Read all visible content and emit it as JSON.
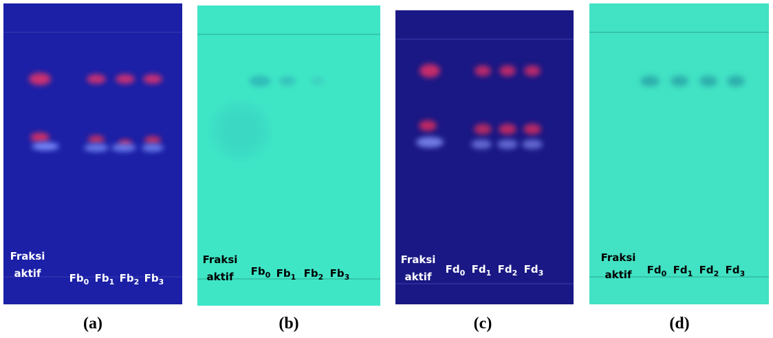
{
  "panels": [
    {
      "caption": "(a)",
      "reference": [
        "Fraksi",
        "aktif"
      ],
      "lanes": [
        {
          "base": "Fb",
          "sub": "0"
        },
        {
          "base": "Fb",
          "sub": "1"
        },
        {
          "base": "Fb",
          "sub": "2"
        },
        {
          "base": "Fb",
          "sub": "3"
        }
      ]
    },
    {
      "caption": "(b)",
      "reference": [
        "Fraksi",
        "aktif"
      ],
      "lanes": [
        {
          "base": "Fb",
          "sub": "0"
        },
        {
          "base": "Fb",
          "sub": "1"
        },
        {
          "base": "Fb",
          "sub": "2"
        },
        {
          "base": "Fb",
          "sub": "3"
        }
      ]
    },
    {
      "caption": "(c)",
      "reference": [
        "Fraksi",
        "aktif"
      ],
      "lanes": [
        {
          "base": "Fd",
          "sub": "0"
        },
        {
          "base": "Fd",
          "sub": "1"
        },
        {
          "base": "Fd",
          "sub": "2"
        },
        {
          "base": "Fd",
          "sub": "3"
        }
      ]
    },
    {
      "caption": "(d)",
      "reference": [
        "Fraksi",
        "aktif"
      ],
      "lanes": [
        {
          "base": "Fd",
          "sub": "0"
        },
        {
          "base": "Fd",
          "sub": "1"
        },
        {
          "base": "Fd",
          "sub": "2"
        },
        {
          "base": "Fd",
          "sub": "3"
        }
      ]
    }
  ]
}
